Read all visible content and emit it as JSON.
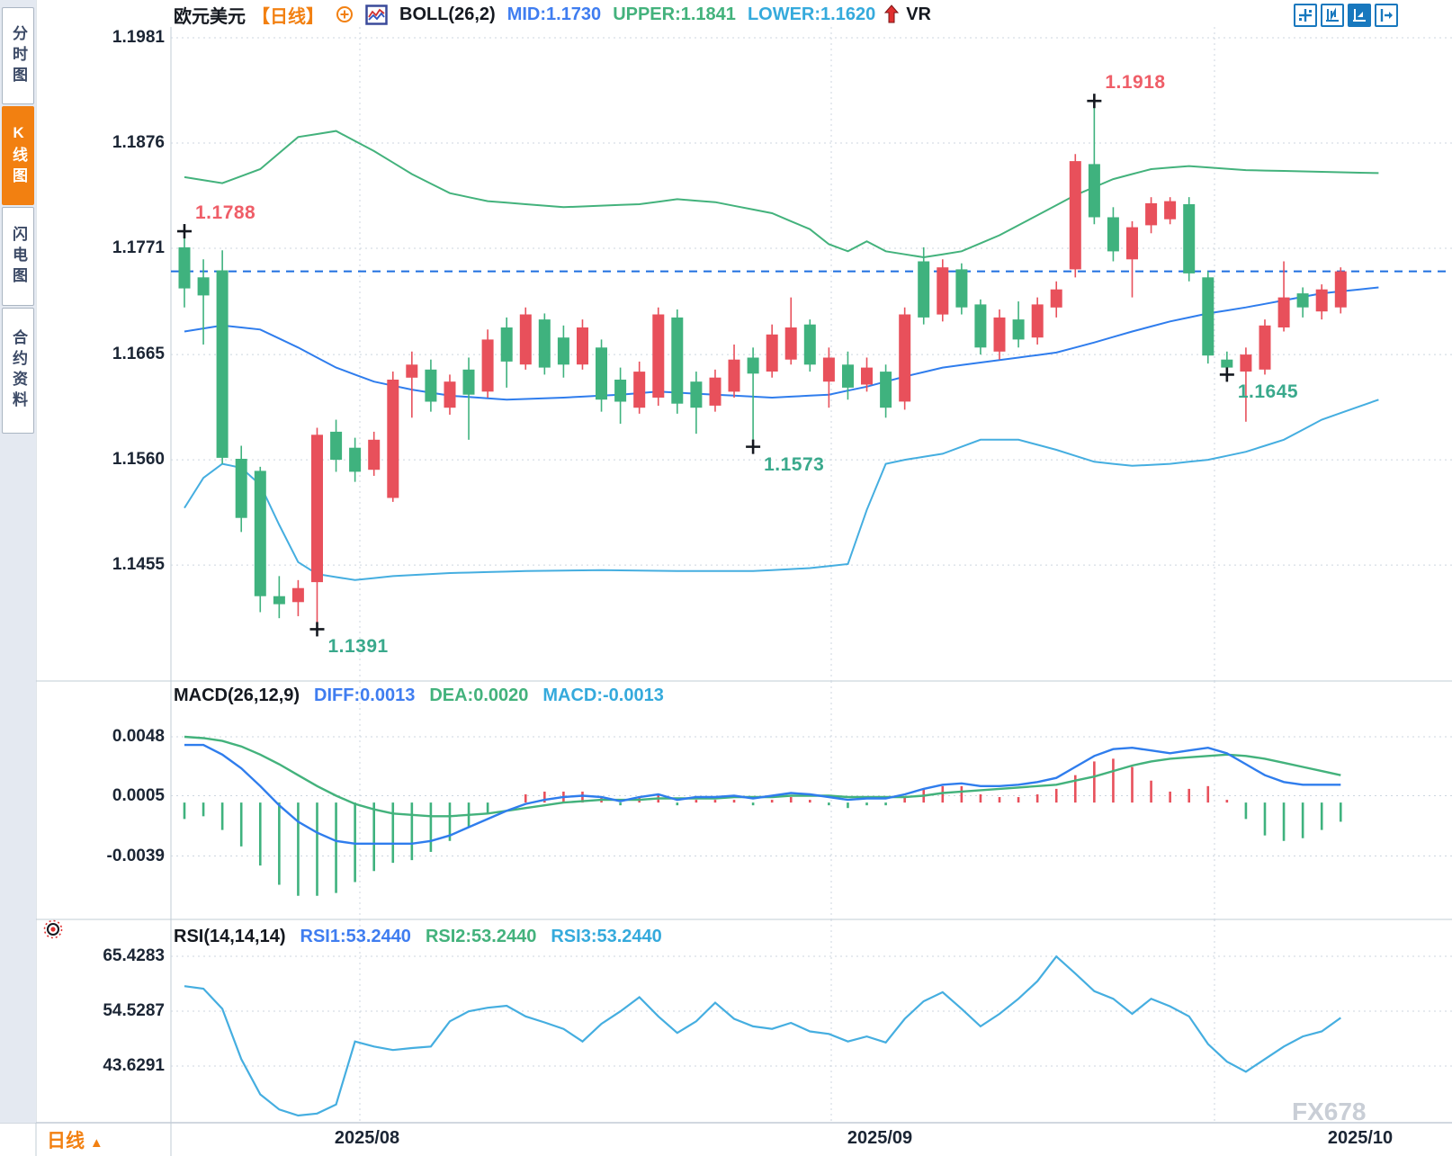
{
  "sidebar": {
    "tabs": [
      {
        "label": "分时图",
        "active": false
      },
      {
        "label": "K线图",
        "active": true
      },
      {
        "label": "闪电图",
        "active": false
      },
      {
        "label": "合约资料",
        "active": false
      }
    ]
  },
  "header": {
    "symbol": "欧元美元",
    "period_tag": "【日线】",
    "indicator": "BOLL(26,2)",
    "mid_label": "MID:1.1730",
    "upper_label": "UPPER:1.1841",
    "lower_label": "LOWER:1.1620",
    "vr_label": "VR"
  },
  "macd_header": {
    "title": "MACD(26,12,9)",
    "diff_label": "DIFF:0.0013",
    "dea_label": "DEA:0.0020",
    "macd_label": "MACD:-0.0013"
  },
  "rsi_header": {
    "title": "RSI(14,14,14)",
    "rsi1_label": "RSI1:53.2440",
    "rsi2_label": "RSI2:53.2440",
    "rsi3_label": "RSI3:53.2440"
  },
  "bottom": {
    "period_label": "日线",
    "period_arrow": "▲",
    "watermark": "FX678"
  },
  "toolbar": {
    "icons": [
      "pan-crosshair",
      "axis-scale",
      "chart-area-active",
      "collapse-right"
    ]
  },
  "colors": {
    "up": "#e8505b",
    "down": "#3fb27e",
    "boll_mid": "#2f7ded",
    "boll_upper": "#43b27c",
    "boll_lower": "#45aee0",
    "last_price_line": "#1f6fe0",
    "macd_diff": "#2f7ded",
    "macd_dea": "#43b27c",
    "rsi_line": "#45aee0",
    "accent_orange": "#f28011",
    "annotation_red": "#ef5e68",
    "annotation_green": "#3aa98c",
    "toolbar_blue": "#1878be",
    "grid": "#ccd5df",
    "border": "#c2ccd6"
  },
  "chart_data": {
    "type": "candlestick",
    "title": "欧元美元 日线 (EUR/USD Daily) with BOLL(26,2), MACD(26,12,9), RSI(14,14,14)",
    "x_labels": [
      "2025/08",
      "2025/09",
      "2025/10"
    ],
    "main": {
      "y_ticks": [
        1.1981,
        1.1876,
        1.1771,
        1.1665,
        1.156,
        1.1455
      ],
      "last_price": 1.1748,
      "ohlc": [
        [
          1.1772,
          1.1788,
          1.1712,
          1.1731
        ],
        [
          1.1742,
          1.176,
          1.1675,
          1.1724
        ],
        [
          1.1749,
          1.1769,
          1.1556,
          1.1562
        ],
        [
          1.1561,
          1.1574,
          1.1488,
          1.1502
        ],
        [
          1.1549,
          1.1553,
          1.1408,
          1.1424
        ],
        [
          1.1424,
          1.1444,
          1.1402,
          1.1416
        ],
        [
          1.1418,
          1.144,
          1.1404,
          1.1432
        ],
        [
          1.1438,
          1.1592,
          1.1391,
          1.1585
        ],
        [
          1.1588,
          1.16,
          1.1548,
          1.156
        ],
        [
          1.1572,
          1.1582,
          1.1538,
          1.1548
        ],
        [
          1.155,
          1.1588,
          1.1544,
          1.158
        ],
        [
          1.1522,
          1.1648,
          1.1518,
          1.164
        ],
        [
          1.1642,
          1.1668,
          1.1602,
          1.1655
        ],
        [
          1.165,
          1.166,
          1.1608,
          1.1618
        ],
        [
          1.1612,
          1.1645,
          1.1605,
          1.1638
        ],
        [
          1.165,
          1.1662,
          1.158,
          1.1625
        ],
        [
          1.1628,
          1.169,
          1.1622,
          1.168
        ],
        [
          1.1692,
          1.1702,
          1.1632,
          1.1658
        ],
        [
          1.1655,
          1.1712,
          1.165,
          1.1705
        ],
        [
          1.17,
          1.1706,
          1.1645,
          1.1652
        ],
        [
          1.1682,
          1.1694,
          1.1642,
          1.1655
        ],
        [
          1.1655,
          1.17,
          1.165,
          1.1692
        ],
        [
          1.1672,
          1.168,
          1.1608,
          1.162
        ],
        [
          1.164,
          1.1652,
          1.1596,
          1.1618
        ],
        [
          1.1612,
          1.1658,
          1.1606,
          1.1648
        ],
        [
          1.1622,
          1.1712,
          1.1614,
          1.1705
        ],
        [
          1.1702,
          1.171,
          1.1606,
          1.1616
        ],
        [
          1.1638,
          1.1648,
          1.1586,
          1.1612
        ],
        [
          1.1614,
          1.165,
          1.1608,
          1.1642
        ],
        [
          1.1628,
          1.1675,
          1.1622,
          1.166
        ],
        [
          1.1662,
          1.1672,
          1.1573,
          1.1646
        ],
        [
          1.1648,
          1.1695,
          1.1642,
          1.1685
        ],
        [
          1.166,
          1.1722,
          1.1655,
          1.1692
        ],
        [
          1.1695,
          1.17,
          1.1648,
          1.1655
        ],
        [
          1.1638,
          1.1672,
          1.1612,
          1.1662
        ],
        [
          1.1655,
          1.1668,
          1.162,
          1.1632
        ],
        [
          1.1635,
          1.1662,
          1.1628,
          1.1652
        ],
        [
          1.1648,
          1.1655,
          1.1602,
          1.1612
        ],
        [
          1.1618,
          1.1712,
          1.161,
          1.1705
        ],
        [
          1.1758,
          1.1772,
          1.1695,
          1.1702
        ],
        [
          1.1705,
          1.176,
          1.1698,
          1.1752
        ],
        [
          1.175,
          1.1756,
          1.1705,
          1.1712
        ],
        [
          1.1715,
          1.172,
          1.1665,
          1.1672
        ],
        [
          1.1668,
          1.171,
          1.166,
          1.1702
        ],
        [
          1.17,
          1.1718,
          1.1672,
          1.168
        ],
        [
          1.1682,
          1.1722,
          1.1675,
          1.1715
        ],
        [
          1.1712,
          1.1738,
          1.1702,
          1.173
        ],
        [
          1.175,
          1.1865,
          1.1742,
          1.1858
        ],
        [
          1.1855,
          1.1918,
          1.1795,
          1.1802
        ],
        [
          1.1802,
          1.1812,
          1.1758,
          1.1768
        ],
        [
          1.176,
          1.1798,
          1.1722,
          1.1792
        ],
        [
          1.1794,
          1.1822,
          1.1786,
          1.1816
        ],
        [
          1.18,
          1.1822,
          1.1795,
          1.1818
        ],
        [
          1.1815,
          1.1822,
          1.1738,
          1.1746
        ],
        [
          1.1742,
          1.1748,
          1.1656,
          1.1664
        ],
        [
          1.166,
          1.1668,
          1.1645,
          1.1652
        ],
        [
          1.1648,
          1.1672,
          1.1598,
          1.1665
        ],
        [
          1.165,
          1.17,
          1.1645,
          1.1694
        ],
        [
          1.1692,
          1.1758,
          1.1688,
          1.1722
        ],
        [
          1.1726,
          1.1732,
          1.1702,
          1.1712
        ],
        [
          1.1708,
          1.1735,
          1.17,
          1.173
        ],
        [
          1.1712,
          1.1752,
          1.1706,
          1.1748
        ]
      ],
      "boll_upper_points": [
        [
          0,
          1.1842
        ],
        [
          2,
          1.1836
        ],
        [
          4,
          1.185
        ],
        [
          6,
          1.1882
        ],
        [
          8,
          1.1888
        ],
        [
          10,
          1.1868
        ],
        [
          12,
          1.1845
        ],
        [
          14,
          1.1826
        ],
        [
          16,
          1.1818
        ],
        [
          20,
          1.1812
        ],
        [
          24,
          1.1815
        ],
        [
          26,
          1.182
        ],
        [
          28,
          1.1817
        ],
        [
          31,
          1.1806
        ],
        [
          33,
          1.179
        ],
        [
          34,
          1.1775
        ],
        [
          35,
          1.1768
        ],
        [
          36,
          1.1778
        ],
        [
          37,
          1.1768
        ],
        [
          39,
          1.1762
        ],
        [
          41,
          1.1768
        ],
        [
          43,
          1.1784
        ],
        [
          45,
          1.1804
        ],
        [
          47,
          1.1824
        ],
        [
          49,
          1.184
        ],
        [
          51,
          1.185
        ],
        [
          53,
          1.1853
        ],
        [
          56,
          1.1849
        ],
        [
          63,
          1.1846
        ]
      ],
      "boll_mid_points": [
        [
          0,
          1.1688
        ],
        [
          2,
          1.1694
        ],
        [
          4,
          1.169
        ],
        [
          6,
          1.1672
        ],
        [
          8,
          1.1652
        ],
        [
          10,
          1.1638
        ],
        [
          12,
          1.163
        ],
        [
          14,
          1.1624
        ],
        [
          17,
          1.162
        ],
        [
          20,
          1.1622
        ],
        [
          23,
          1.1625
        ],
        [
          25,
          1.1628
        ],
        [
          28,
          1.1625
        ],
        [
          31,
          1.1622
        ],
        [
          34,
          1.1625
        ],
        [
          36,
          1.1633
        ],
        [
          38,
          1.1643
        ],
        [
          40,
          1.1652
        ],
        [
          42,
          1.1657
        ],
        [
          44,
          1.1662
        ],
        [
          46,
          1.1667
        ],
        [
          48,
          1.1677
        ],
        [
          50,
          1.1688
        ],
        [
          52,
          1.1698
        ],
        [
          54,
          1.1706
        ],
        [
          56,
          1.1712
        ],
        [
          58,
          1.1719
        ],
        [
          60,
          1.1726
        ],
        [
          63,
          1.1732
        ]
      ],
      "boll_lower_points": [
        [
          0,
          1.1512
        ],
        [
          1,
          1.1542
        ],
        [
          2,
          1.1556
        ],
        [
          3,
          1.1552
        ],
        [
          4,
          1.1535
        ],
        [
          5,
          1.1495
        ],
        [
          6,
          1.1458
        ],
        [
          7,
          1.1446
        ],
        [
          9,
          1.144
        ],
        [
          11,
          1.1444
        ],
        [
          14,
          1.1447
        ],
        [
          18,
          1.1449
        ],
        [
          22,
          1.145
        ],
        [
          26,
          1.1449
        ],
        [
          30,
          1.1449
        ],
        [
          33,
          1.1452
        ],
        [
          35,
          1.1456
        ],
        [
          36,
          1.151
        ],
        [
          37,
          1.1556
        ],
        [
          38,
          1.156
        ],
        [
          40,
          1.1566
        ],
        [
          42,
          1.158
        ],
        [
          44,
          1.158
        ],
        [
          46,
          1.157
        ],
        [
          48,
          1.1558
        ],
        [
          50,
          1.1554
        ],
        [
          52,
          1.1556
        ],
        [
          54,
          1.156
        ],
        [
          56,
          1.1568
        ],
        [
          58,
          1.158
        ],
        [
          60,
          1.16
        ],
        [
          63,
          1.162
        ]
      ],
      "annotations": [
        {
          "text": "1.1788",
          "index": 0,
          "anchor": "high",
          "color": "red"
        },
        {
          "text": "1.1918",
          "index": 48,
          "anchor": "high",
          "color": "red"
        },
        {
          "text": "1.1573",
          "index": 30,
          "anchor": "low",
          "color": "green"
        },
        {
          "text": "1.1391",
          "index": 7,
          "anchor": "low",
          "color": "green"
        },
        {
          "text": "1.1645",
          "index": 55,
          "anchor": "low",
          "color": "green"
        }
      ]
    },
    "macd": {
      "y_ticks": [
        0.0048,
        0.0005,
        -0.0039
      ],
      "diff": [
        0.0042,
        0.0042,
        0.0035,
        0.0025,
        0.0012,
        -0.0002,
        -0.0014,
        -0.0022,
        -0.0028,
        -0.003,
        -0.003,
        -0.003,
        -0.003,
        -0.0028,
        -0.0024,
        -0.0018,
        -0.0012,
        -0.0006,
        -0.0001,
        0.0002,
        0.0004,
        0.0005,
        0.0004,
        0.0001,
        0.0004,
        0.0006,
        0.0002,
        0.0004,
        0.0004,
        0.0005,
        0.0003,
        0.0005,
        0.0007,
        0.0006,
        0.0004,
        0.0002,
        0.0003,
        0.0003,
        0.0006,
        0.001,
        0.0013,
        0.0014,
        0.0012,
        0.0012,
        0.0013,
        0.0015,
        0.0018,
        0.0026,
        0.0034,
        0.0039,
        0.004,
        0.0038,
        0.0036,
        0.0038,
        0.004,
        0.0036,
        0.0028,
        0.002,
        0.0015,
        0.0013,
        0.0013,
        0.0013
      ],
      "dea": [
        0.0048,
        0.0047,
        0.0045,
        0.0041,
        0.0035,
        0.0028,
        0.002,
        0.0012,
        0.0005,
        -0.0001,
        -0.0005,
        -0.0008,
        -0.0009,
        -0.001,
        -0.001,
        -0.0009,
        -0.0008,
        -0.0006,
        -0.0004,
        -0.0002,
        0.0,
        0.0001,
        0.0002,
        0.0002,
        0.0002,
        0.0003,
        0.0003,
        0.0003,
        0.0003,
        0.0004,
        0.0004,
        0.0004,
        0.0005,
        0.0005,
        0.0005,
        0.0004,
        0.0004,
        0.0004,
        0.0004,
        0.0005,
        0.0007,
        0.0008,
        0.0009,
        0.001,
        0.0011,
        0.0012,
        0.0013,
        0.0016,
        0.0019,
        0.0023,
        0.0027,
        0.003,
        0.0032,
        0.0033,
        0.0034,
        0.0035,
        0.0034,
        0.0032,
        0.0029,
        0.0026,
        0.0023,
        0.002
      ]
    },
    "rsi": {
      "y_ticks": [
        65.4283,
        54.5287,
        43.6291
      ],
      "values": [
        59.5,
        59.0,
        55.0,
        45.0,
        38.0,
        35.0,
        33.8,
        34.2,
        36.0,
        48.5,
        47.5,
        46.8,
        47.2,
        47.5,
        52.5,
        54.5,
        55.2,
        55.6,
        53.5,
        52.3,
        51.0,
        48.5,
        52.0,
        54.5,
        57.3,
        53.5,
        50.2,
        52.5,
        56.2,
        53.0,
        51.5,
        51.0,
        52.2,
        50.5,
        50.0,
        48.5,
        49.5,
        48.3,
        53.0,
        56.5,
        58.3,
        55.0,
        51.5,
        54.0,
        57.0,
        60.5,
        65.4,
        62.0,
        58.5,
        57.0,
        54.0,
        57.0,
        55.5,
        53.5,
        48.0,
        44.5,
        42.5,
        45.0,
        47.5,
        49.5,
        50.5,
        53.2
      ]
    }
  }
}
